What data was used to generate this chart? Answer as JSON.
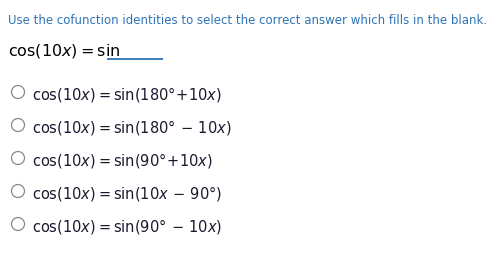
{
  "background_color": "#ffffff",
  "instruction_text": "Use the cofunction identities to select the correct answer which fills in the blank.",
  "instruction_color": "#2E74B5",
  "blank_line_color": "#000000",
  "underline_color": "#2E74B5",
  "option_color": "#1a1a2e",
  "circle_color": "#888888",
  "font_size_instruction": 8.5,
  "font_size_blank": 11.5,
  "font_size_options": 10.5,
  "options": [
    "cos(10$x$) = sin(180° + 10$x$)",
    "cos(10$x$) = sin(180° – 10$x$)",
    "cos(10$x$) = sin(90° + 10$x$)",
    "cos(10$x$) = sin(10$x$ – 90°)",
    "cos(10$x$) = sin(90° – 10$x$)"
  ]
}
